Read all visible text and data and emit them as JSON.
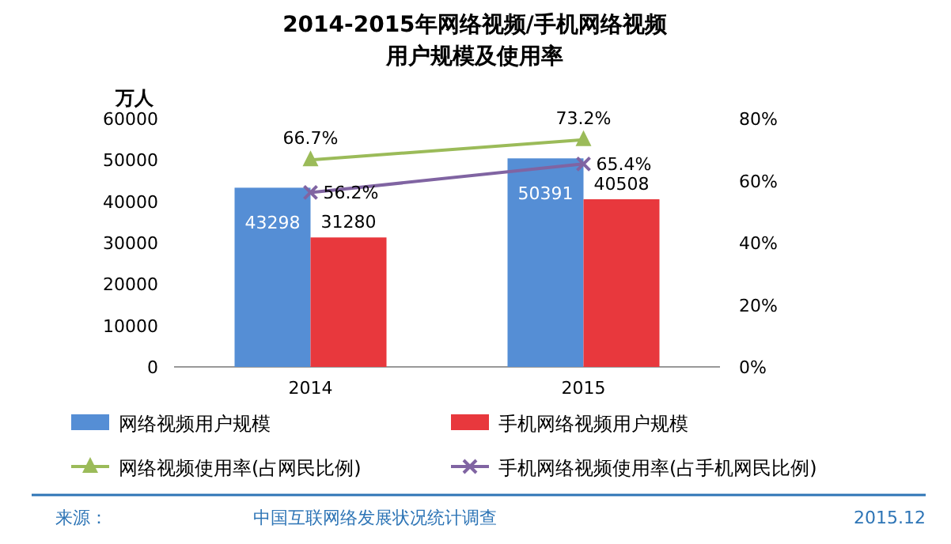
{
  "chart_data": {
    "type": "bar",
    "title": "2014-2015年网络视频/手机网络视频",
    "subtitle": "用户规模及使用率",
    "ylabel": "万人",
    "categories": [
      "2014",
      "2015"
    ],
    "series": [
      {
        "name": "网络视频用户规模",
        "color": "#558ed5",
        "values": [
          43298,
          50391
        ]
      },
      {
        "name": "手机网络视频用户规模",
        "color": "#e8383d",
        "values": [
          31280,
          40508
        ]
      },
      {
        "name": "网络视频使用率(占网民比例)",
        "type": "line",
        "axis": "y2",
        "marker": "triangle",
        "color": "#9bbb59",
        "values": [
          66.7,
          73.2
        ],
        "value_labels": [
          "66.7%",
          "73.2%"
        ]
      },
      {
        "name": "手机网络视频使用率(占手机网民比例)",
        "type": "line",
        "axis": "y2",
        "marker": "cross",
        "color": "#8064a2",
        "values": [
          56.2,
          65.4
        ],
        "value_labels": [
          "56.2%",
          "65.4%"
        ]
      }
    ],
    "ylim": [
      0,
      60000
    ],
    "yticks": [
      0,
      10000,
      20000,
      30000,
      40000,
      50000,
      60000
    ],
    "y2lim": [
      0,
      80
    ],
    "y2ticks": [
      {
        "value": 0,
        "label": "0%"
      },
      {
        "value": 20,
        "label": "20%"
      },
      {
        "value": 40,
        "label": "40%"
      },
      {
        "value": 60,
        "label": "60%"
      },
      {
        "value": 80,
        "label": "80%"
      }
    ],
    "data_labels": true,
    "legend": "bottom",
    "grid": false,
    "annotations": [
      "来源：",
      "中国互联网络发展状况统计调查",
      "2015.12"
    ]
  }
}
